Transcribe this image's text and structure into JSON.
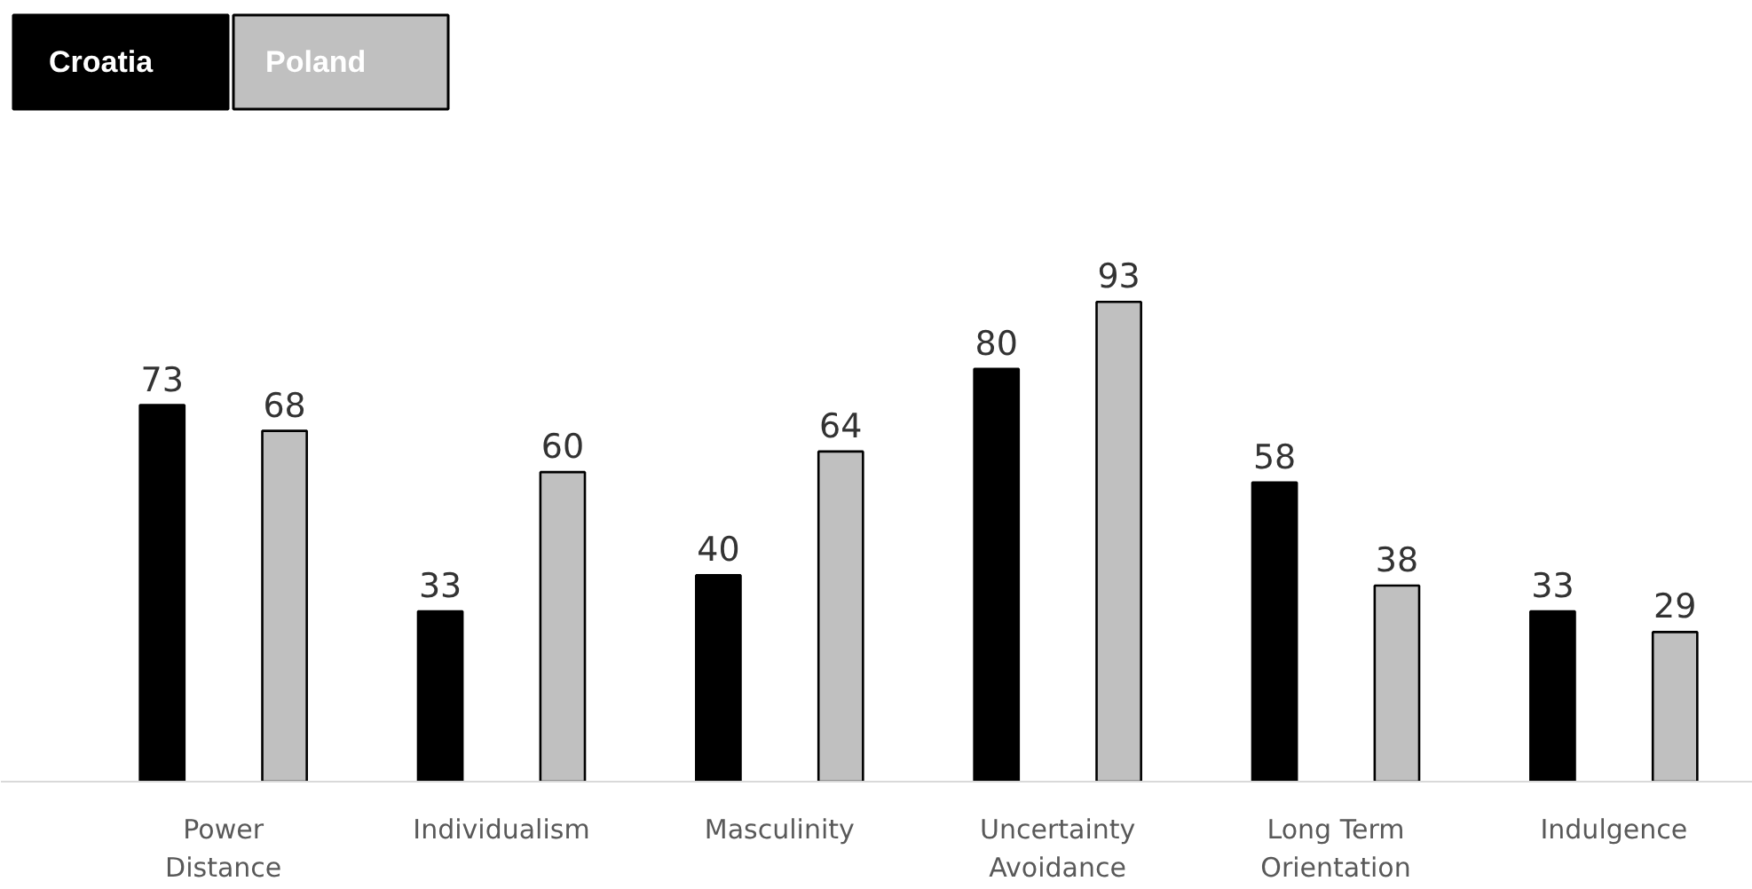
{
  "chart_data": {
    "type": "bar",
    "categories": [
      "Power\nDistance",
      "Individualism",
      "Masculinity",
      "Uncertainty\nAvoidance",
      "Long Term\nOrientation",
      "Indulgence"
    ],
    "series": [
      {
        "name": "Croatia",
        "color": "#000000",
        "values": [
          73,
          33,
          40,
          80,
          58,
          33
        ]
      },
      {
        "name": "Poland",
        "color": "#c0c0c0",
        "values": [
          68,
          60,
          64,
          93,
          38,
          29
        ]
      }
    ],
    "data_labels": true,
    "legend": "top left",
    "grid": false
  }
}
